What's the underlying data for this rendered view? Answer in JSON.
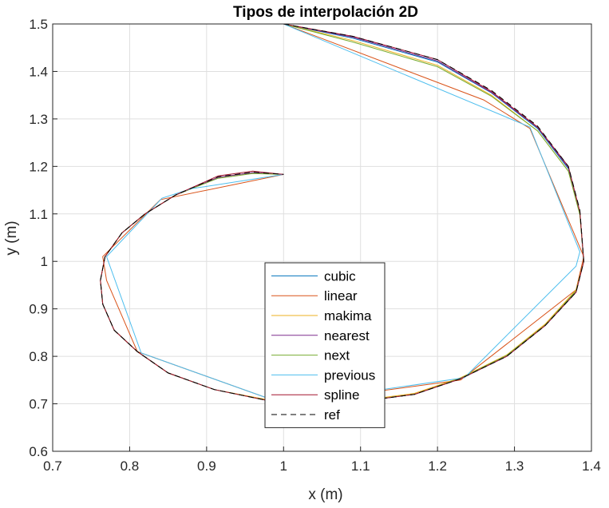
{
  "chart_data": {
    "type": "line",
    "title": "Tipos de interpolación 2D",
    "xlabel": "x (m)",
    "ylabel": "y (m)",
    "xlim": [
      0.7,
      1.4
    ],
    "ylim": [
      0.6,
      1.5
    ],
    "xticks": [
      "0.7",
      "0.8",
      "0.9",
      "1",
      "1.1",
      "1.2",
      "1.3",
      "1.4"
    ],
    "yticks": [
      "0.6",
      "0.7",
      "0.8",
      "0.9",
      "1",
      "1.1",
      "1.2",
      "1.3",
      "1.4",
      "1.5"
    ],
    "grid": true,
    "legend_position": "bottom-center",
    "series": [
      {
        "name": "cubic",
        "color": "#0072BD",
        "x": [
          1.0,
          1.09,
          1.2,
          1.27,
          1.33,
          1.37,
          1.385,
          1.39,
          1.38,
          1.34,
          1.29,
          1.23,
          1.17,
          1.1,
          1.0,
          0.91,
          0.85,
          0.81,
          0.78,
          0.765,
          0.762,
          0.768,
          0.79,
          0.82,
          0.86,
          0.915,
          0.96,
          1.0
        ],
        "y": [
          1.5,
          1.47,
          1.42,
          1.355,
          1.28,
          1.195,
          1.1,
          1.0,
          0.935,
          0.865,
          0.8,
          0.753,
          0.72,
          0.705,
          0.7,
          0.73,
          0.765,
          0.81,
          0.855,
          0.91,
          0.96,
          1.01,
          1.06,
          1.1,
          1.14,
          1.177,
          1.187,
          1.183
        ]
      },
      {
        "name": "linear",
        "color": "#D95319",
        "x": [
          1.0,
          1.26,
          1.32,
          1.39,
          1.38,
          1.23,
          1.0,
          0.81,
          0.77,
          0.765,
          0.84,
          1.0
        ],
        "y": [
          1.5,
          1.34,
          1.28,
          1.01,
          0.94,
          0.75,
          0.7,
          0.81,
          0.96,
          1.01,
          1.13,
          1.183
        ]
      },
      {
        "name": "makima",
        "color": "#EDB120",
        "x": [
          1.0,
          1.09,
          1.2,
          1.27,
          1.33,
          1.37,
          1.385,
          1.39,
          1.38,
          1.34,
          1.29,
          1.23,
          1.17,
          1.1,
          1.0,
          0.91,
          0.85,
          0.81,
          0.78,
          0.765,
          0.762,
          0.768,
          0.79,
          0.82,
          0.86,
          0.915,
          0.96,
          1.0
        ],
        "y": [
          1.5,
          1.465,
          1.413,
          1.35,
          1.275,
          1.19,
          1.1,
          1.0,
          0.94,
          0.868,
          0.803,
          0.755,
          0.722,
          0.707,
          0.702,
          0.73,
          0.765,
          0.81,
          0.855,
          0.91,
          0.96,
          1.01,
          1.06,
          1.1,
          1.14,
          1.177,
          1.187,
          1.183
        ]
      },
      {
        "name": "nearest",
        "color": "#7E2F8E",
        "x": [
          1.0,
          1.09,
          1.2,
          1.27,
          1.33,
          1.37,
          1.385,
          1.39,
          1.38,
          1.34,
          1.29,
          1.23,
          1.17,
          1.1,
          1.0,
          0.91,
          0.85,
          0.81,
          0.78,
          0.765,
          0.762,
          0.768,
          0.79,
          0.82,
          0.86,
          0.915,
          0.96,
          1.0
        ],
        "y": [
          1.5,
          1.472,
          1.422,
          1.356,
          1.282,
          1.197,
          1.103,
          1.0,
          0.935,
          0.865,
          0.8,
          0.753,
          0.72,
          0.705,
          0.7,
          0.73,
          0.765,
          0.81,
          0.855,
          0.91,
          0.96,
          1.01,
          1.06,
          1.1,
          1.14,
          1.177,
          1.187,
          1.183
        ]
      },
      {
        "name": "next",
        "color": "#77AC30",
        "x": [
          1.0,
          1.09,
          1.2,
          1.27,
          1.33,
          1.37,
          1.385,
          1.39,
          1.38,
          1.34,
          1.29,
          1.23,
          1.17,
          1.1,
          1.0,
          0.91,
          0.85,
          0.81,
          0.78,
          0.765,
          0.762,
          0.768,
          0.79,
          0.82,
          0.86,
          0.915,
          0.96,
          1.0
        ],
        "y": [
          1.5,
          1.462,
          1.41,
          1.348,
          1.275,
          1.19,
          1.098,
          1.0,
          0.938,
          0.866,
          0.802,
          0.754,
          0.72,
          0.706,
          0.7,
          0.73,
          0.765,
          0.81,
          0.855,
          0.91,
          0.96,
          1.01,
          1.06,
          1.1,
          1.14,
          1.175,
          1.185,
          1.183
        ]
      },
      {
        "name": "previous",
        "color": "#4DBEEE",
        "x": [
          1.0,
          1.32,
          1.385,
          1.38,
          1.235,
          1.0,
          0.815,
          0.77,
          0.842,
          0.88,
          1.0
        ],
        "y": [
          1.5,
          1.283,
          1.02,
          0.99,
          0.755,
          0.7,
          0.807,
          1.01,
          1.133,
          1.153,
          1.183
        ]
      },
      {
        "name": "spline",
        "color": "#A2142F",
        "x": [
          1.0,
          1.09,
          1.2,
          1.27,
          1.33,
          1.37,
          1.385,
          1.39,
          1.38,
          1.34,
          1.29,
          1.23,
          1.17,
          1.1,
          1.0,
          0.91,
          0.85,
          0.81,
          0.78,
          0.765,
          0.762,
          0.768,
          0.79,
          0.82,
          0.86,
          0.915,
          0.96,
          1.0
        ],
        "y": [
          1.5,
          1.474,
          1.425,
          1.358,
          1.283,
          1.2,
          1.105,
          1.0,
          0.935,
          0.865,
          0.8,
          0.753,
          0.72,
          0.705,
          0.7,
          0.73,
          0.765,
          0.81,
          0.855,
          0.91,
          0.96,
          1.01,
          1.06,
          1.1,
          1.14,
          1.18,
          1.19,
          1.183
        ]
      },
      {
        "name": "ref",
        "color": "#000000",
        "dashed": true,
        "x": [
          1.0,
          1.09,
          1.2,
          1.27,
          1.33,
          1.37,
          1.385,
          1.39,
          1.38,
          1.34,
          1.29,
          1.23,
          1.17,
          1.1,
          1.0,
          0.91,
          0.85,
          0.81,
          0.78,
          0.765,
          0.762,
          0.768,
          0.79,
          0.82,
          0.86,
          0.915,
          0.96,
          1.0
        ],
        "y": [
          1.5,
          1.474,
          1.425,
          1.36,
          1.285,
          1.2,
          1.108,
          1.0,
          0.935,
          0.865,
          0.8,
          0.753,
          0.72,
          0.705,
          0.7,
          0.73,
          0.765,
          0.81,
          0.855,
          0.91,
          0.96,
          1.01,
          1.06,
          1.1,
          1.14,
          1.178,
          1.188,
          1.183
        ]
      }
    ]
  }
}
